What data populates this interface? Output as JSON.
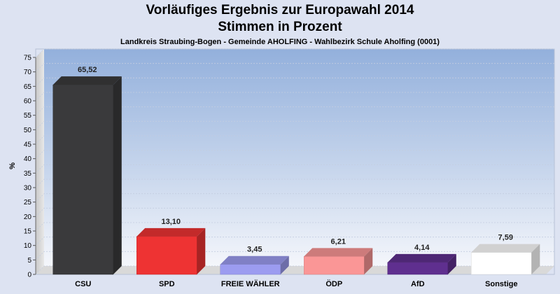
{
  "chart_data": {
    "type": "bar",
    "title": "Vorläufiges Ergebnis zur Europawahl 2014",
    "subtitle": "Stimmen in Prozent",
    "caption": "Landkreis Straubing-Bogen - Gemeinde AHOLFING - Wahlbezirk Schule Aholfing (0001)",
    "ylabel": "%",
    "xlabel": "",
    "ylim": [
      0,
      75
    ],
    "yticks": [
      "0",
      "5",
      "10",
      "15",
      "20",
      "25",
      "30",
      "35",
      "40",
      "45",
      "50",
      "55",
      "60",
      "65",
      "70",
      "75"
    ],
    "grid": true,
    "categories": [
      "CSU",
      "SPD",
      "FREIE WÄHLER",
      "ÖDP",
      "AfD",
      "Sonstige"
    ],
    "values": [
      65.52,
      13.1,
      3.45,
      6.21,
      4.14,
      7.59
    ],
    "value_labels": [
      "65,52",
      "13,10",
      "3,45",
      "6,21",
      "4,14",
      "7,59"
    ],
    "colors": [
      "#3a3a3c",
      "#ee3333",
      "#9c9cf0",
      "#fa9696",
      "#5f2f8f",
      "#ffffff"
    ]
  }
}
